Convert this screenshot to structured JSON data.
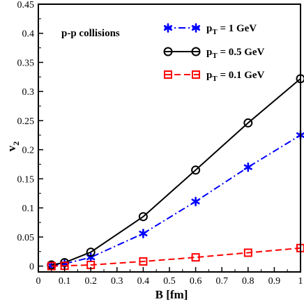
{
  "chart_data": {
    "type": "line",
    "xlabel": "B [fm]",
    "ylabel_main": "v",
    "ylabel_sub": "2",
    "xlim": [
      0,
      1
    ],
    "ylim": [
      -0.01,
      0.45
    ],
    "x_ticks": [
      "0",
      "0.1",
      "0.2",
      "0.3",
      "0.4",
      "0.5",
      "0.6",
      "0.7",
      "0.8",
      "0.9",
      "1"
    ],
    "y_ticks": [
      "0",
      "0.05",
      "0.1",
      "0.15",
      "0.2",
      "0.25",
      "0.3",
      "0.35",
      "0.4",
      "0.45"
    ],
    "grid": false,
    "legend_position": "top-right",
    "annotation": "p-p collisions",
    "series": [
      {
        "name_prefix": "p",
        "name_sub": "T",
        "name_suffix": " = 1 GeV",
        "color": "#0000ff",
        "marker": "star",
        "line_style": "dashdot",
        "x": [
          0.05,
          0.1,
          0.2,
          0.4,
          0.6,
          0.8,
          1.0
        ],
        "y": [
          0.001,
          0.004,
          0.015,
          0.056,
          0.111,
          0.17,
          0.225
        ]
      },
      {
        "name_prefix": "p",
        "name_sub": "T",
        "name_suffix": " = 0.5 GeV",
        "color": "#000000",
        "marker": "circle",
        "line_style": "solid",
        "x": [
          0.05,
          0.1,
          0.2,
          0.4,
          0.6,
          0.8,
          1.0
        ],
        "y": [
          0.002,
          0.006,
          0.024,
          0.085,
          0.165,
          0.246,
          0.322
        ]
      },
      {
        "name_prefix": "p",
        "name_sub": "T",
        "name_suffix": " = 0.1 GeV",
        "color": "#ff0000",
        "marker": "square",
        "line_style": "dashed",
        "x": [
          0.05,
          0.1,
          0.2,
          0.4,
          0.6,
          0.8,
          1.0
        ],
        "y": [
          0.0,
          0.0005,
          0.002,
          0.008,
          0.015,
          0.023,
          0.031
        ]
      }
    ]
  }
}
